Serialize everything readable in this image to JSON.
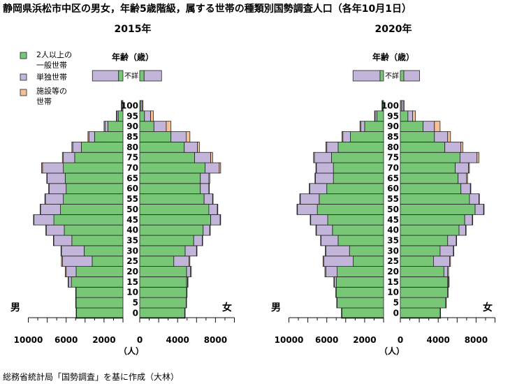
{
  "title": "静岡県浜松市中区の男女，年齢5歳階級，属する世帯の種類別国勢調査人口（各年10月1日）",
  "source": "総務省統計局「国勢調査」を基に作成（大林）",
  "colors": {
    "general": "#77c777",
    "single": "#c3b4da",
    "facility": "#f7bf94",
    "edge": "#222222"
  },
  "legend": [
    {
      "key": "general",
      "lines": [
        "2人以上の",
        "一般世帯"
      ]
    },
    {
      "key": "single",
      "lines": [
        "単独世帯"
      ]
    },
    {
      "key": "facility",
      "lines": [
        "施設等の",
        "世帯"
      ]
    }
  ],
  "chart_data": [
    {
      "type": "bar",
      "title": "2015年",
      "age_axis_label": "年齢（歳）",
      "male_label": "男",
      "female_label": "女",
      "unit_label": "（人）",
      "unknown_label": "不詳",
      "xlim": [
        0,
        10000
      ],
      "male_ticks": [
        "10000",
        "6000",
        "2000"
      ],
      "female_ticks": [
        "0",
        "4000",
        "8000"
      ],
      "age_labels": [
        "0",
        "5",
        "10",
        "15",
        "20",
        "25",
        "30",
        "35",
        "40",
        "45",
        "50",
        "55",
        "60",
        "65",
        "70",
        "75",
        "80",
        "85",
        "90",
        "95",
        "100"
      ],
      "categories": [
        "0-4",
        "5-9",
        "10-14",
        "15-19",
        "20-24",
        "25-29",
        "30-34",
        "35-39",
        "40-44",
        "45-49",
        "50-54",
        "55-59",
        "60-64",
        "65-69",
        "70-74",
        "75-79",
        "80-84",
        "85-89",
        "90-94",
        "95-99",
        "100+"
      ],
      "series": [
        {
          "name": "2人以上の一般世帯",
          "sex": "男",
          "values": [
            4900,
            4950,
            4950,
            5450,
            4950,
            3250,
            4100,
            5400,
            6200,
            7300,
            6600,
            6300,
            6000,
            6100,
            6300,
            5100,
            4400,
            3000,
            1600,
            500,
            100
          ]
        },
        {
          "name": "単独世帯",
          "sex": "男",
          "values": [
            50,
            50,
            50,
            300,
            1050,
            3150,
            2400,
            1900,
            1900,
            2100,
            2100,
            1900,
            1800,
            1900,
            2200,
            1200,
            900,
            600,
            300,
            150,
            50
          ]
        },
        {
          "name": "施設等の世帯",
          "sex": "男",
          "values": [
            0,
            0,
            0,
            50,
            100,
            100,
            50,
            50,
            50,
            50,
            50,
            50,
            50,
            50,
            100,
            100,
            100,
            100,
            100,
            50,
            20
          ]
        },
        {
          "name": "2人以上の一般世帯",
          "sex": "女",
          "values": [
            4750,
            4900,
            4950,
            4950,
            4950,
            3600,
            4800,
            5700,
            6700,
            7500,
            7300,
            6800,
            6400,
            6400,
            6900,
            5800,
            4700,
            3300,
            1500,
            500,
            100
          ]
        },
        {
          "name": "単独世帯",
          "sex": "女",
          "values": [
            50,
            50,
            50,
            100,
            400,
            1600,
            1200,
            900,
            700,
            1000,
            900,
            900,
            900,
            900,
            1500,
            1700,
            1400,
            1600,
            1300,
            650,
            150
          ]
        },
        {
          "name": "施設等の世帯",
          "sex": "女",
          "values": [
            0,
            0,
            0,
            50,
            100,
            100,
            50,
            50,
            50,
            50,
            50,
            50,
            50,
            100,
            150,
            200,
            200,
            400,
            500,
            300,
            100
          ]
        }
      ],
      "unknown": {
        "male": {
          "general": 500,
          "single": 3000
        },
        "female": {
          "general": 500,
          "single": 2000
        }
      }
    },
    {
      "type": "bar",
      "title": "2020年",
      "age_axis_label": "年齢（歳）",
      "male_label": "男",
      "female_label": "女",
      "unit_label": "（人）",
      "unknown_label": "不詳",
      "xlim": [
        0,
        10000
      ],
      "male_ticks": [
        "10000",
        "6000",
        "2000"
      ],
      "female_ticks": [
        "0",
        "4000",
        "8000"
      ],
      "age_labels": [
        "0",
        "5",
        "10",
        "15",
        "20",
        "25",
        "30",
        "35",
        "40",
        "45",
        "50",
        "55",
        "60",
        "65",
        "70",
        "75",
        "80",
        "85",
        "90",
        "95",
        "100"
      ],
      "categories": [
        "0-4",
        "5-9",
        "10-14",
        "15-19",
        "20-24",
        "25-29",
        "30-34",
        "35-39",
        "40-44",
        "45-49",
        "50-54",
        "55-59",
        "60-64",
        "65-69",
        "70-74",
        "75-79",
        "80-84",
        "85-89",
        "90-94",
        "95-99",
        "100+"
      ],
      "series": [
        {
          "name": "2人以上の一般世帯",
          "sex": "男",
          "values": [
            4400,
            4900,
            5000,
            5000,
            4900,
            3200,
            3600,
            4800,
            5400,
            5900,
            7000,
            6800,
            6000,
            5300,
            5300,
            5500,
            4800,
            3500,
            2000,
            700,
            100
          ]
        },
        {
          "name": "単独世帯",
          "sex": "男",
          "values": [
            50,
            50,
            50,
            200,
            1200,
            3100,
            2500,
            1800,
            1700,
            1800,
            2100,
            2000,
            1800,
            1900,
            1800,
            1800,
            1200,
            800,
            400,
            200,
            50
          ]
        },
        {
          "name": "施設等の世帯",
          "sex": "男",
          "values": [
            0,
            0,
            0,
            50,
            100,
            100,
            50,
            50,
            50,
            50,
            50,
            50,
            50,
            50,
            50,
            100,
            100,
            100,
            100,
            50,
            20
          ]
        },
        {
          "name": "2人以上の一般世帯",
          "sex": "女",
          "values": [
            4200,
            4800,
            5000,
            5000,
            4600,
            3500,
            4200,
            5000,
            6200,
            6800,
            7900,
            7300,
            6400,
            6100,
            5800,
            6300,
            4700,
            3600,
            2400,
            800,
            100
          ]
        },
        {
          "name": "単独世帯",
          "sex": "女",
          "values": [
            50,
            50,
            50,
            100,
            400,
            1700,
            1400,
            900,
            700,
            800,
            900,
            1000,
            1000,
            900,
            1400,
            1800,
            1700,
            1400,
            1200,
            500,
            200
          ]
        },
        {
          "name": "施設等の世帯",
          "sex": "女",
          "values": [
            0,
            0,
            0,
            50,
            100,
            100,
            50,
            50,
            50,
            50,
            50,
            50,
            50,
            100,
            100,
            200,
            200,
            300,
            600,
            300,
            100
          ]
        }
      ],
      "unknown": {
        "male": {
          "general": 400,
          "single": 3100
        },
        "female": {
          "general": 400,
          "single": 1800
        }
      }
    }
  ]
}
